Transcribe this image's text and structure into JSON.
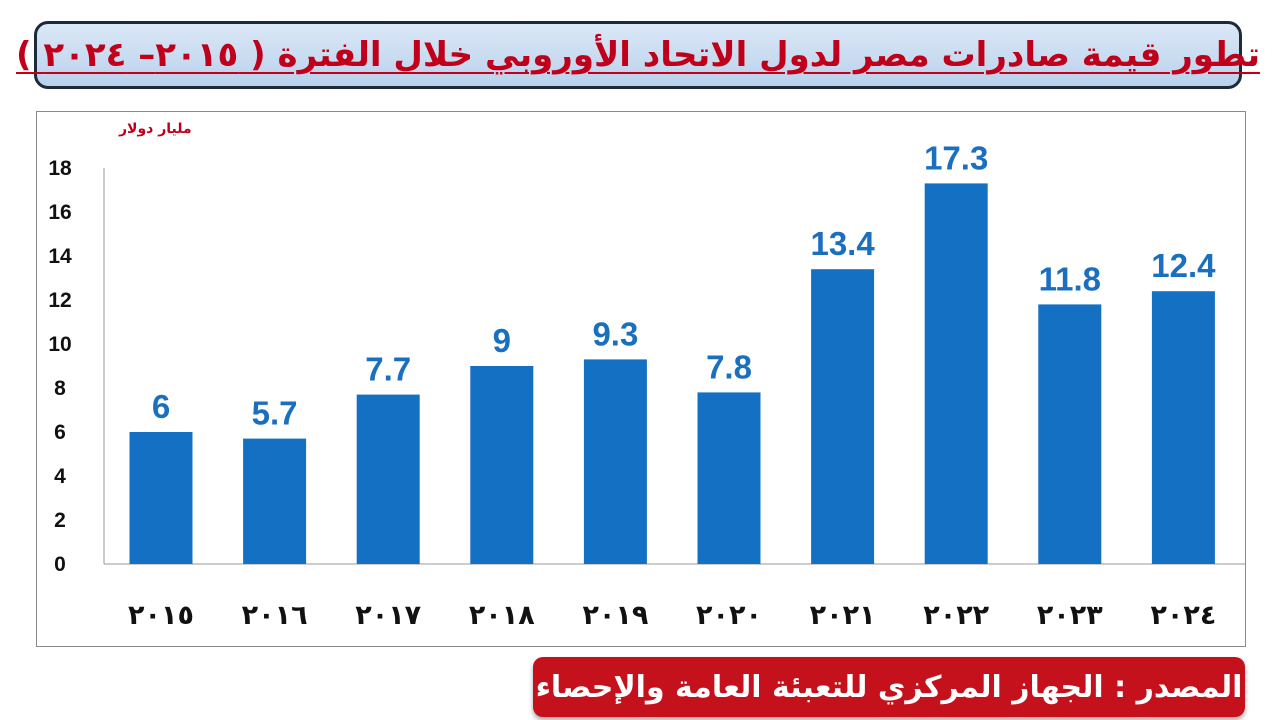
{
  "title": "تطور قيمة صادرات مصر لدول الاتحاد الأوروبي خلال الفترة ( ٢٠١٥– ٢٠٢٤ )",
  "source": "المصدر : الجهاز المركزي للتعبئة العامة والإحصاء",
  "colors": {
    "bar": "#1470c3",
    "value_label": "#1a6fbf",
    "unit_label": "#c0001a",
    "title_text": "#c0001a",
    "source_bg": "#c4111b"
  },
  "chart_data": {
    "type": "bar",
    "title": "تطور قيمة صادرات مصر لدول الاتحاد الأوروبي خلال الفترة ( ٢٠١٥– ٢٠٢٤ )",
    "ylabel": "مليار دولار",
    "xlabel": "",
    "categories": [
      "٢٠١٥",
      "٢٠١٦",
      "٢٠١٧",
      "٢٠١٨",
      "٢٠١٩",
      "٢٠٢٠",
      "٢٠٢١",
      "٢٠٢٢",
      "٢٠٢٣",
      "٢٠٢٤"
    ],
    "values": [
      6,
      5.7,
      7.7,
      9,
      9.3,
      7.8,
      13.4,
      17.3,
      11.8,
      12.4
    ],
    "value_labels": [
      "6",
      "5.7",
      "7.7",
      "9",
      "9.3",
      "7.8",
      "13.4",
      "17.3",
      "11.8",
      "12.4"
    ],
    "ylim": [
      0,
      18
    ],
    "yticks": [
      0,
      2,
      4,
      6,
      8,
      10,
      12,
      14,
      16,
      18
    ],
    "ytick_labels": [
      "0",
      "2",
      "4",
      "6",
      "8",
      "10",
      "12",
      "14",
      "16",
      "18"
    ],
    "grid": false,
    "legend": "none"
  }
}
